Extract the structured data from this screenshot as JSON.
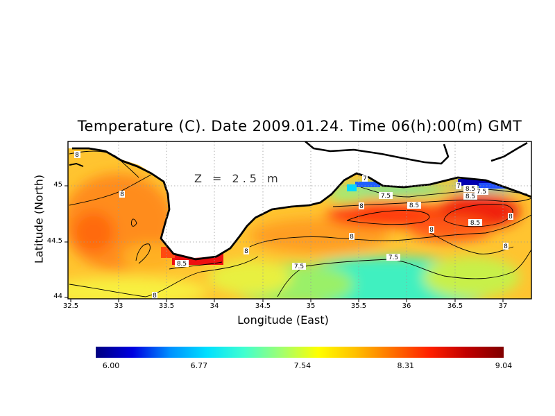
{
  "title": "Temperature (C). Date 2009.01.24. Time 06(h):00(m) GMT",
  "depth_label": "Z = 2.5 m",
  "x_axis": {
    "label": "Longitude (East)",
    "range": [
      32.5,
      37.3
    ],
    "ticks": [
      "32.5",
      "33",
      "33.5",
      "34",
      "34.5",
      "35",
      "35.5",
      "36",
      "36.5",
      "37"
    ]
  },
  "y_axis": {
    "label": "Latitude (North)",
    "range": [
      44.0,
      45.35
    ],
    "ticks": [
      "44",
      "44.5",
      "45"
    ]
  },
  "colorbar": {
    "range": [
      6.0,
      9.04
    ],
    "ticks": [
      "6.00",
      "6.77",
      "7.54",
      "8.31",
      "9.04"
    ],
    "colors": [
      "#000080",
      "#0000e0",
      "#0090ff",
      "#00e0ff",
      "#40ffd0",
      "#a0ff70",
      "#ffff00",
      "#ffc000",
      "#ff7000",
      "#ff2000",
      "#c00000",
      "#800000"
    ]
  },
  "contour_labels": [
    "8",
    "8",
    "8.5",
    "8",
    "8",
    "8.5",
    "7.5",
    "8",
    "7",
    "8",
    "8",
    "7.5",
    "7.5",
    "8.5",
    "8.5",
    "7",
    "7.5",
    "8.5",
    "8",
    "8",
    "8"
  ],
  "colors": {
    "land": "#ffffff",
    "coastline": "#000000",
    "grid": "#999999"
  }
}
